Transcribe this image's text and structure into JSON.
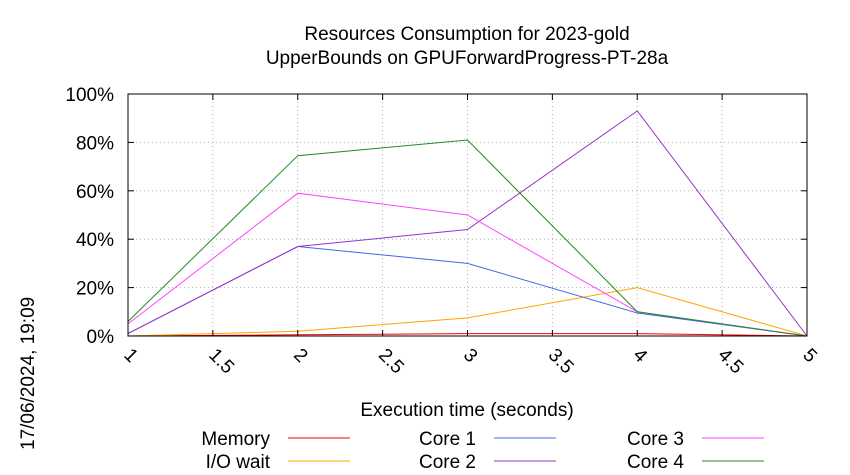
{
  "chart_data": {
    "type": "line",
    "title": "Resources Consumption for 2023-gold",
    "subtitle": "UpperBounds on GPUForwardProgress-PT-28a",
    "xlabel": "Execution time (seconds)",
    "ylabel": "",
    "timestamp": "17/06/2024, 19:09",
    "xlim": [
      1,
      5
    ],
    "ylim": [
      0,
      100
    ],
    "x_ticks": [
      1,
      1.5,
      2,
      2.5,
      3,
      3.5,
      4,
      4.5,
      5
    ],
    "x_tick_labels": [
      "1",
      "1.5",
      "2",
      "2.5",
      "3",
      "3.5",
      "4",
      "4.5",
      "5"
    ],
    "y_ticks": [
      0,
      20,
      40,
      60,
      80,
      100
    ],
    "y_tick_labels": [
      "0%",
      "20%",
      "40%",
      "60%",
      "80%",
      "100%"
    ],
    "grid": true,
    "legend_position": "bottom",
    "x": [
      1,
      2,
      3,
      4,
      5
    ],
    "series": [
      {
        "name": "Memory",
        "color": "#ff0000",
        "values": [
          0,
          0.5,
          1,
          1,
          0
        ]
      },
      {
        "name": "I/O wait",
        "color": "#ffa500",
        "values": [
          0,
          2,
          7.5,
          20,
          0
        ]
      },
      {
        "name": "Core 1",
        "color": "#4169e1",
        "values": [
          1,
          37,
          30,
          9.5,
          0
        ]
      },
      {
        "name": "Core 2",
        "color": "#9932cc",
        "values": [
          1,
          37,
          44,
          93,
          0
        ]
      },
      {
        "name": "Core 3",
        "color": "#ff44ff",
        "values": [
          5,
          59,
          50,
          10,
          0
        ]
      },
      {
        "name": "Core 4",
        "color": "#228b22",
        "values": [
          6,
          74.5,
          81,
          10,
          0
        ]
      }
    ]
  }
}
